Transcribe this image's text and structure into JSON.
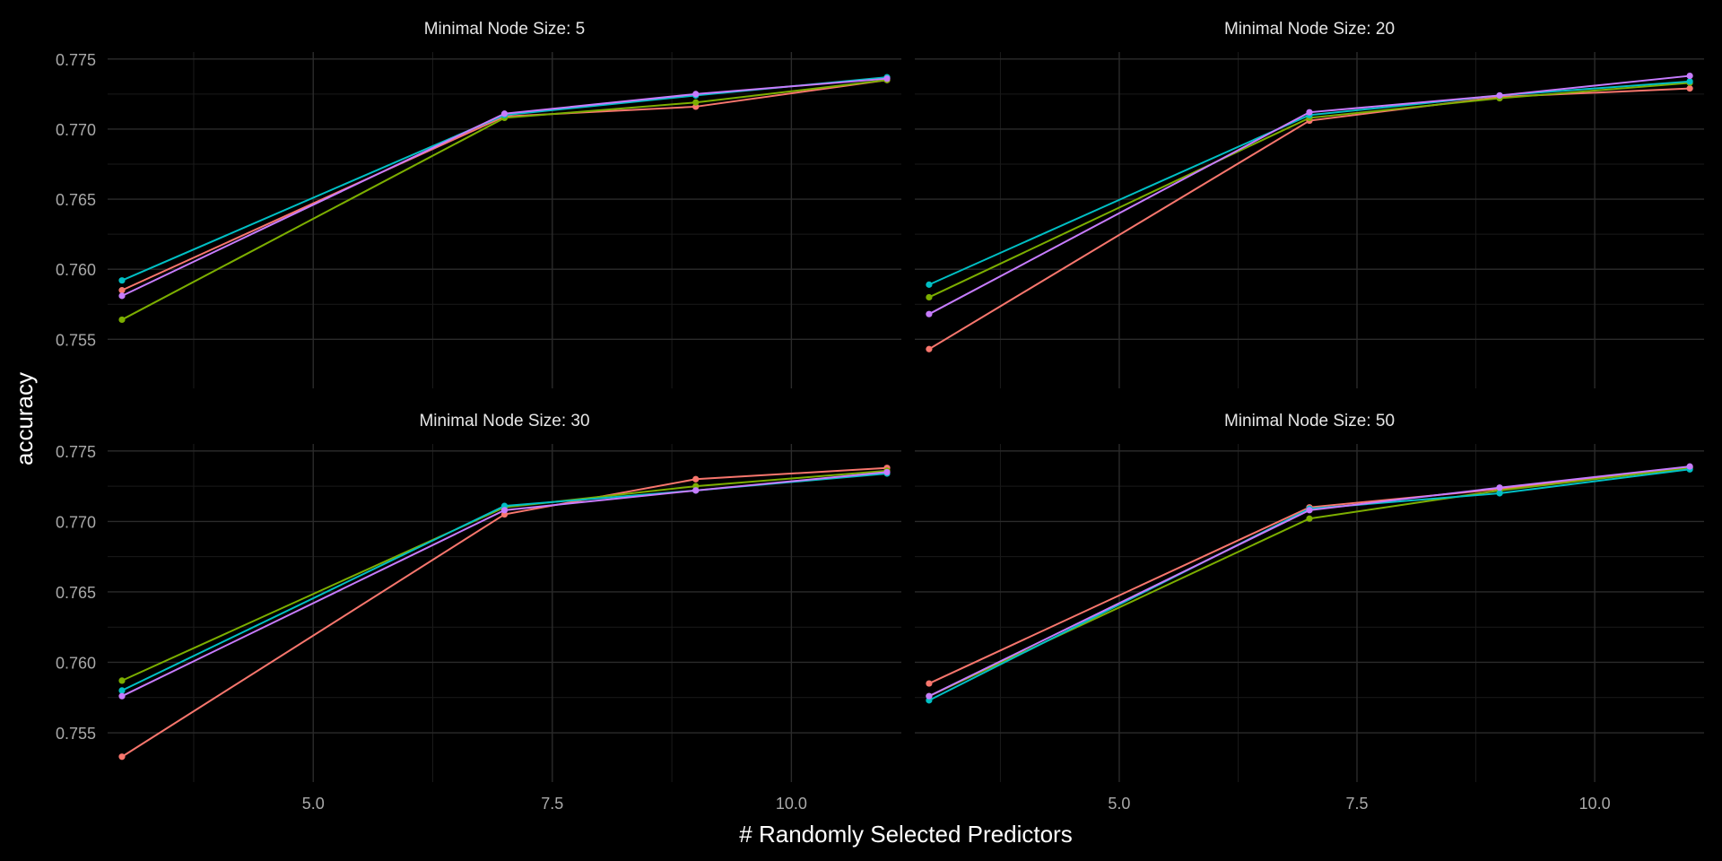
{
  "chart_data": {
    "type": "line",
    "xlabel": "# Randomly Selected Predictors",
    "ylabel": "accuracy",
    "xlim": [
      2.85,
      11.15
    ],
    "ylim": [
      0.7515,
      0.7755
    ],
    "x_ticks": [
      5.0,
      7.5,
      10.0
    ],
    "x_tick_labels": [
      "5.0",
      "7.5",
      "10.0"
    ],
    "y_ticks": [
      0.755,
      0.76,
      0.765,
      0.77,
      0.775
    ],
    "y_tick_labels": [
      "0.755",
      "0.760",
      "0.765",
      "0.770",
      "0.775"
    ],
    "grid": true,
    "legend": "none",
    "x": [
      3,
      7,
      9,
      11
    ],
    "colors": [
      "#F8766D",
      "#7CAE00",
      "#00BFC4",
      "#C77CFF"
    ],
    "panels": [
      {
        "title": "Minimal Node Size: 5",
        "series": [
          {
            "values": [
              0.7585,
              0.7709,
              0.7716,
              0.7735
            ]
          },
          {
            "values": [
              0.7564,
              0.7708,
              0.7719,
              0.7735
            ]
          },
          {
            "values": [
              0.7592,
              0.771,
              0.7724,
              0.7737
            ]
          },
          {
            "values": [
              0.7581,
              0.7711,
              0.7725,
              0.7736
            ]
          }
        ]
      },
      {
        "title": "Minimal Node Size: 20",
        "series": [
          {
            "values": [
              0.7543,
              0.7706,
              0.7723,
              0.7729
            ]
          },
          {
            "values": [
              0.758,
              0.7708,
              0.7722,
              0.7733
            ]
          },
          {
            "values": [
              0.7589,
              0.771,
              0.7724,
              0.7734
            ]
          },
          {
            "values": [
              0.7568,
              0.7712,
              0.7724,
              0.7738
            ]
          }
        ]
      },
      {
        "title": "Minimal Node Size: 30",
        "series": [
          {
            "values": [
              0.7533,
              0.7705,
              0.773,
              0.7738
            ]
          },
          {
            "values": [
              0.7587,
              0.771,
              0.7725,
              0.7736
            ]
          },
          {
            "values": [
              0.758,
              0.7711,
              0.7722,
              0.7734
            ]
          },
          {
            "values": [
              0.7576,
              0.7708,
              0.7722,
              0.7735
            ]
          }
        ]
      },
      {
        "title": "Minimal Node Size: 50",
        "series": [
          {
            "values": [
              0.7585,
              0.771,
              0.7723,
              0.7738
            ]
          },
          {
            "values": [
              0.7576,
              0.7702,
              0.7722,
              0.7738
            ]
          },
          {
            "values": [
              0.7573,
              0.7709,
              0.772,
              0.7737
            ]
          },
          {
            "values": [
              0.7576,
              0.7708,
              0.7724,
              0.7739
            ]
          }
        ]
      }
    ]
  }
}
